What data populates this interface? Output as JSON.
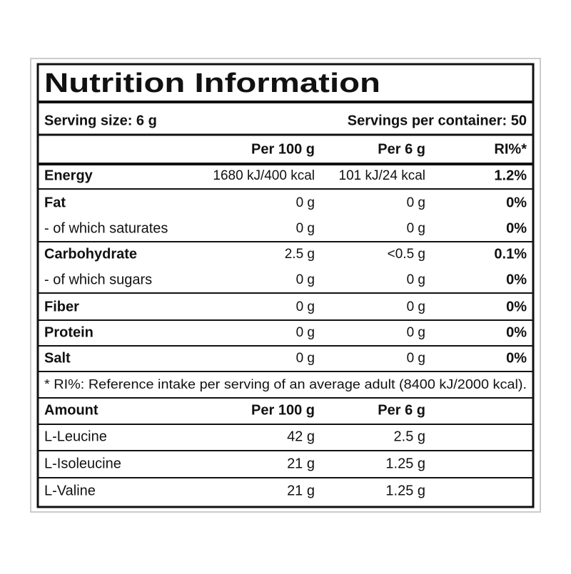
{
  "title": "Nutrition Information",
  "serving": {
    "size": "Serving size: 6 g",
    "per_container": "Servings per container: 50"
  },
  "nutrition": {
    "header": [
      "Per 100 g",
      "Per 6 g",
      "RI%*"
    ],
    "rows": [
      [
        "Energy",
        "1680 kJ/400 kcal",
        "101 kJ/24 kcal",
        "1.2%"
      ],
      [
        "Fat",
        "0 g",
        "0 g",
        "0%"
      ],
      [
        "- of which saturates",
        "0 g",
        "0 g",
        "0%"
      ],
      [
        "Carbohydrate",
        "2.5 g",
        "<0.5 g",
        "0.1%"
      ],
      [
        "- of which sugars",
        "0 g",
        "0 g",
        "0%"
      ],
      [
        "Fiber",
        "0 g",
        "0 g",
        "0%"
      ],
      [
        "Protein",
        "0 g",
        "0 g",
        "0%"
      ],
      [
        "Salt",
        "0 g",
        "0 g",
        "0%"
      ]
    ]
  },
  "footnote": "* RI%: Reference intake per serving of an average adult (8400 kJ/2000 kcal).",
  "amino": {
    "header": [
      "Amount",
      "Per 100 g",
      "Per 6 g"
    ],
    "rows": [
      [
        "L-Leucine",
        "42 g",
        "2.5 g"
      ],
      [
        "L-Isoleucine",
        "21 g",
        "1.25 g"
      ],
      [
        "L-Valine",
        "21 g",
        "1.25 g"
      ]
    ]
  }
}
